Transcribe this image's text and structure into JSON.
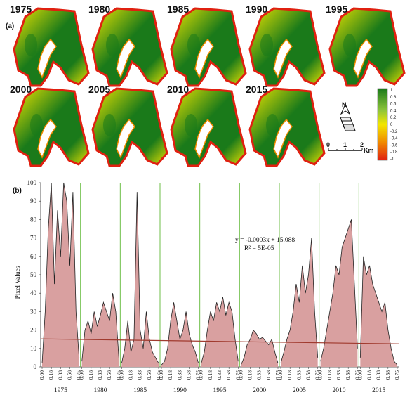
{
  "panel_a": {
    "label": "(a)",
    "years": [
      "1975",
      "1980",
      "1985",
      "1990",
      "1995",
      "2000",
      "2005",
      "2010",
      "2015"
    ],
    "colorbar": {
      "ticks": [
        "1",
        "0.8",
        "0.6",
        "0.4",
        "0.2",
        "0",
        "-0.2",
        "-0.4",
        "-0.6",
        "-0.8",
        "-1"
      ],
      "colors": [
        "#1a7a1a",
        "#f2e600",
        "#f08a00",
        "#e02010"
      ]
    },
    "north_label": "N",
    "scale": {
      "ticks": [
        "0",
        "1",
        "2"
      ],
      "unit": "Km"
    }
  },
  "chart_data": {
    "type": "area",
    "panel_label": "(b)",
    "ylabel": "Pixel Values",
    "ylim": [
      0,
      100
    ],
    "yticks": [
      0,
      10,
      20,
      30,
      40,
      50,
      60,
      70,
      80,
      90,
      100
    ],
    "grid": false,
    "x_tick_labels": [
      "0.00",
      "0.18",
      "0.33",
      "0.58",
      "0.75"
    ],
    "groups": [
      "1975",
      "1980",
      "1985",
      "1990",
      "1995",
      "2000",
      "2005",
      "2010",
      "2015"
    ],
    "series": [
      {
        "color": "#d9a0a0",
        "values": [
          [
            2,
            30,
            75,
            100,
            45,
            85,
            60,
            100,
            90,
            55,
            95,
            30,
            5
          ],
          [
            3,
            20,
            25,
            18,
            30,
            22,
            28,
            35,
            30,
            25,
            40,
            30,
            5
          ],
          [
            2,
            10,
            25,
            8,
            15,
            95,
            20,
            10,
            30,
            15,
            8,
            5,
            2
          ],
          [
            1,
            3,
            10,
            25,
            35,
            25,
            15,
            20,
            30,
            18,
            12,
            8,
            2
          ],
          [
            2,
            8,
            20,
            30,
            25,
            35,
            30,
            38,
            28,
            35,
            30,
            15,
            3
          ],
          [
            1,
            5,
            12,
            15,
            20,
            18,
            15,
            16,
            14,
            12,
            15,
            8,
            2
          ],
          [
            2,
            8,
            15,
            20,
            30,
            45,
            35,
            55,
            40,
            50,
            70,
            30,
            5
          ],
          [
            3,
            10,
            20,
            30,
            40,
            55,
            50,
            65,
            70,
            75,
            80,
            45,
            10
          ],
          [
            5,
            60,
            50,
            55,
            45,
            40,
            35,
            30,
            35,
            20,
            10,
            3,
            1
          ]
        ]
      }
    ],
    "trendline": {
      "color": "#a03a2e",
      "start": 15.2,
      "end": 12.5,
      "equation": "y = -0.0003x + 15.088",
      "r_squared": "R² = 5E-05"
    },
    "separator_color": "#6fbf4a"
  }
}
